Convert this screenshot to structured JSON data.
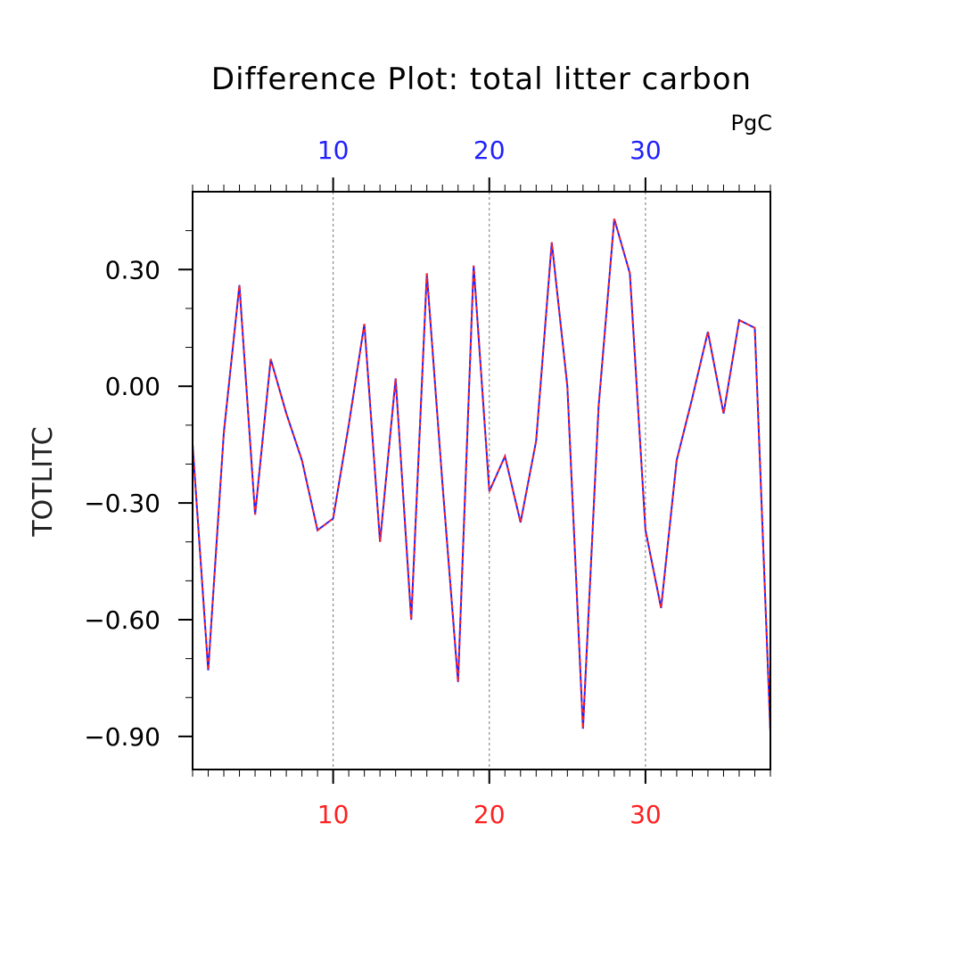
{
  "chart_data": {
    "type": "line",
    "title": "Difference Plot: total litter carbon",
    "units": "PgC",
    "ylabel": "TOTLITC",
    "xlabel": "",
    "xlim": [
      1,
      38
    ],
    "ylim": [
      -0.985,
      0.5
    ],
    "xticks_major": [
      10,
      20,
      30
    ],
    "xtick_labels": [
      "10",
      "20",
      "30"
    ],
    "yticks_major": [
      0.3,
      0.0,
      -0.3,
      -0.6,
      -0.9
    ],
    "ytick_labels": [
      "0.30",
      "0.00",
      "−0.30",
      "−0.60",
      "−0.90"
    ],
    "grid": "vertical dashed at major x ticks",
    "x": [
      1,
      2,
      3,
      4,
      5,
      6,
      7,
      8,
      9,
      10,
      11,
      12,
      13,
      14,
      15,
      16,
      17,
      18,
      19,
      20,
      21,
      22,
      23,
      24,
      25,
      26,
      27,
      28,
      29,
      30,
      31,
      32,
      33,
      34,
      35,
      36,
      37,
      38
    ],
    "series": [
      {
        "color": "#2020ff",
        "style": "solid",
        "values": [
          -0.15,
          -0.73,
          -0.12,
          0.26,
          -0.33,
          0.07,
          -0.07,
          -0.19,
          -0.37,
          -0.34,
          -0.1,
          0.16,
          -0.4,
          0.02,
          -0.6,
          0.29,
          -0.25,
          -0.76,
          0.31,
          -0.27,
          -0.18,
          -0.35,
          -0.14,
          0.37,
          0.0,
          -0.88,
          -0.05,
          0.43,
          0.29,
          -0.37,
          -0.57,
          -0.19,
          -0.03,
          0.14,
          -0.07,
          0.17,
          0.15,
          -0.89
        ]
      },
      {
        "color": "#ff2020",
        "style": "dashed",
        "values": [
          -0.15,
          -0.73,
          -0.12,
          0.26,
          -0.33,
          0.07,
          -0.07,
          -0.19,
          -0.37,
          -0.34,
          -0.1,
          0.16,
          -0.4,
          0.02,
          -0.6,
          0.29,
          -0.25,
          -0.76,
          0.31,
          -0.27,
          -0.18,
          -0.35,
          -0.14,
          0.37,
          0.0,
          -0.88,
          -0.05,
          0.43,
          0.29,
          -0.37,
          -0.57,
          -0.19,
          -0.03,
          0.14,
          -0.07,
          0.17,
          0.15,
          -0.89
        ]
      }
    ],
    "colors": {
      "bottom_axis_labels": "#ff2020",
      "top_axis_labels": "#2020ff",
      "frame": "#000000"
    }
  }
}
